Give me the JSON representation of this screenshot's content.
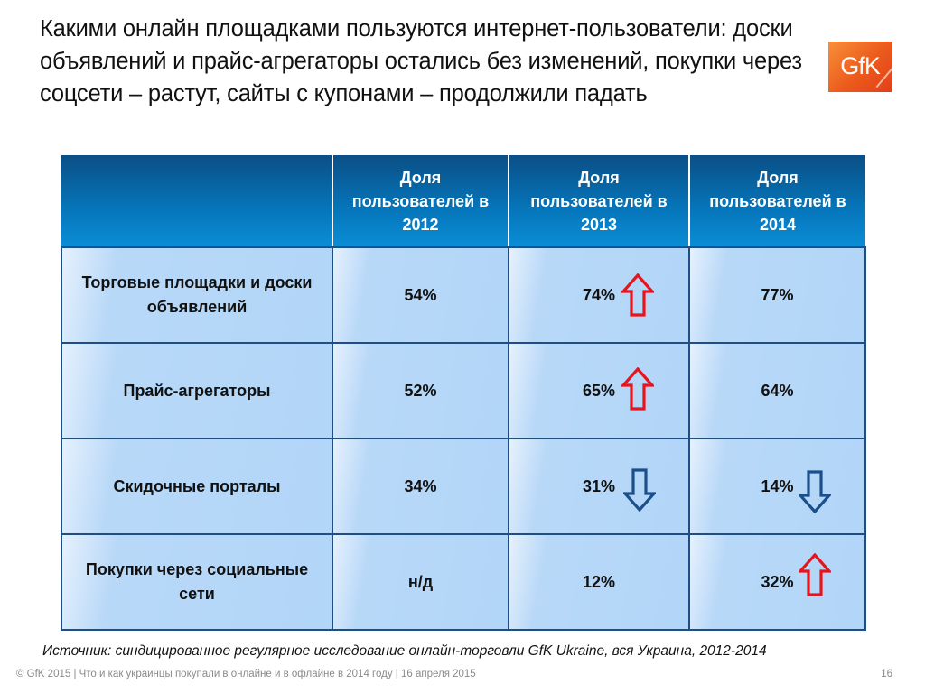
{
  "title": "Какими онлайн площадками пользуются интернет-пользователи: доски объявлений и прайс-агрегаторы остались без изменений, покупки через соцсети – растут, сайты с купонами – продолжили падать",
  "logo": {
    "text": "GfK",
    "color": "#ec5a1c"
  },
  "table": {
    "headers": [
      "",
      "Доля пользователей в 2012",
      "Доля пользователей в 2013",
      "Доля пользователей в 2014"
    ],
    "rows": [
      {
        "label": "Торговые площадки и доски объявлений",
        "v2012": "54%",
        "v2013": "74%",
        "v2014": "77%",
        "trend2013": "up",
        "trend2014": "none"
      },
      {
        "label": "Прайс-агрегаторы",
        "v2012": "52%",
        "v2013": "65%",
        "v2014": "64%",
        "trend2013": "up",
        "trend2014": "none"
      },
      {
        "label": "Скидочные порталы",
        "v2012": "34%",
        "v2013": "31%",
        "v2014": "14%",
        "trend2013": "down",
        "trend2014": "down"
      },
      {
        "label": "Покупки через социальные сети",
        "v2012": "н/д",
        "v2013": "12%",
        "v2014": "32%",
        "trend2013": "none",
        "trend2014": "up"
      }
    ],
    "colors": {
      "up": "#e8141b",
      "down": "#1a4f8c"
    }
  },
  "source": "Источник: синдицированное регулярное исследование онлайн-торговли GfK Ukraine, вся Украина, 2012-2014",
  "footer": "© GfK 2015 | Что и как украинцы покупали в онлайне и в офлайне в 2014 году | 16 апреля 2015",
  "page_number": "16"
}
